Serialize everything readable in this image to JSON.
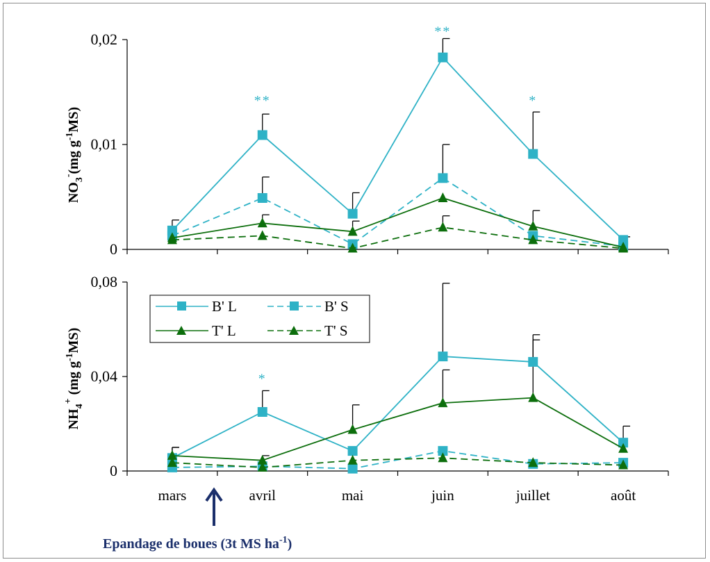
{
  "chart_data": [
    {
      "type": "line",
      "categories": [
        "mars",
        "avril",
        "mai",
        "juin",
        "juillet",
        "août"
      ],
      "ylim": [
        0,
        0.02
      ],
      "yticks": [
        "0,02",
        "0,01",
        "0"
      ],
      "ylabel": "NO3-(mg g-1MS)",
      "series": [
        {
          "name": "B' L",
          "values": [
            0.0018,
            0.0109,
            0.0034,
            0.0183,
            0.0091,
            0.0009
          ],
          "err": [
            0.001,
            0.002,
            0.002,
            0.0018,
            0.004,
            0.0003
          ],
          "color": "#2eb2c6",
          "dash": false,
          "marker": "square"
        },
        {
          "name": "B' S",
          "values": [
            0.0013,
            0.0049,
            0.0005,
            0.0068,
            0.0013,
            0.0003
          ],
          "err": [
            0,
            0.002,
            0,
            0.0032,
            0,
            0
          ],
          "color": "#2eb2c6",
          "dash": true,
          "marker": "square"
        },
        {
          "name": "T' L",
          "values": [
            0.0011,
            0.0025,
            0.0017,
            0.0049,
            0.0022,
            0.0002
          ],
          "err": [
            0,
            0.0008,
            0.001,
            0,
            0.0015,
            0
          ],
          "color": "#0c6e0c",
          "dash": false,
          "marker": "triangle"
        },
        {
          "name": "T' S",
          "values": [
            0.0009,
            0.0013,
            0.0001,
            0.0021,
            0.0009,
            0.0001
          ],
          "err": [
            0,
            0,
            0,
            0.0011,
            0,
            0
          ],
          "color": "#0c6e0c",
          "dash": true,
          "marker": "triangle"
        }
      ],
      "annotations": [
        {
          "category": "avril",
          "text": "**",
          "value": 0.0143
        },
        {
          "category": "juin",
          "text": "**",
          "value": 0.0209
        },
        {
          "category": "juillet",
          "text": "*",
          "value": 0.0143
        }
      ]
    },
    {
      "type": "line",
      "categories": [
        "mars",
        "avril",
        "mai",
        "juin",
        "juillet",
        "août"
      ],
      "ylim": [
        0,
        0.08
      ],
      "yticks": [
        "0,08",
        "0,04",
        "0"
      ],
      "ylabel": "NH4+ (mg g-1MS)",
      "series": [
        {
          "name": "B' L",
          "values": [
            0.0055,
            0.025,
            0.0085,
            0.0485,
            0.0462,
            0.012
          ],
          "err": [
            0.0045,
            0.009,
            0,
            0.031,
            0.0115,
            0.007
          ],
          "color": "#2eb2c6",
          "dash": false,
          "marker": "square"
        },
        {
          "name": "B' S",
          "values": [
            0.0015,
            0.002,
            0.001,
            0.0085,
            0.003,
            0.0035
          ],
          "err": [
            0,
            0,
            0,
            0,
            0,
            0
          ],
          "color": "#2eb2c6",
          "dash": true,
          "marker": "square"
        },
        {
          "name": "T' L",
          "values": [
            0.0065,
            0.0045,
            0.0175,
            0.0288,
            0.031,
            0.0095
          ],
          "err": [
            0.0035,
            0.002,
            0.0105,
            0.014,
            0.0245,
            0
          ],
          "color": "#0c6e0c",
          "dash": false,
          "marker": "triangle"
        },
        {
          "name": "T' S",
          "values": [
            0.0035,
            0.0015,
            0.0045,
            0.0055,
            0.0035,
            0.0025
          ],
          "err": [
            0,
            0,
            0,
            0,
            0,
            0
          ],
          "color": "#0c6e0c",
          "dash": true,
          "marker": "triangle"
        }
      ],
      "annotations": [
        {
          "category": "avril",
          "text": "*",
          "value": 0.0395
        }
      ]
    }
  ],
  "top_chart": {
    "ylabel_main": "NO",
    "ylabel_sub": "3",
    "ylabel_sup": "-",
    "ylabel_rest": "(mg g",
    "ylabel_exp": "-1",
    "ylabel_end": "MS)"
  },
  "bottom_chart": {
    "ylabel_main": "NH",
    "ylabel_sub": "4",
    "ylabel_sup": "+",
    "ylabel_rest": " (mg g",
    "ylabel_exp": "-1",
    "ylabel_end": "MS)"
  },
  "legend": {
    "items": [
      "B' L",
      "B' S",
      "T' L",
      "T' S"
    ]
  },
  "annotation": {
    "text_main": "Epandage de boues (3t MS ha",
    "text_exp": "-1",
    "text_end": ")"
  },
  "colors": {
    "cyan": "#2eb2c6",
    "green": "#0c6e0c",
    "annotation": "#1b2f6b"
  }
}
